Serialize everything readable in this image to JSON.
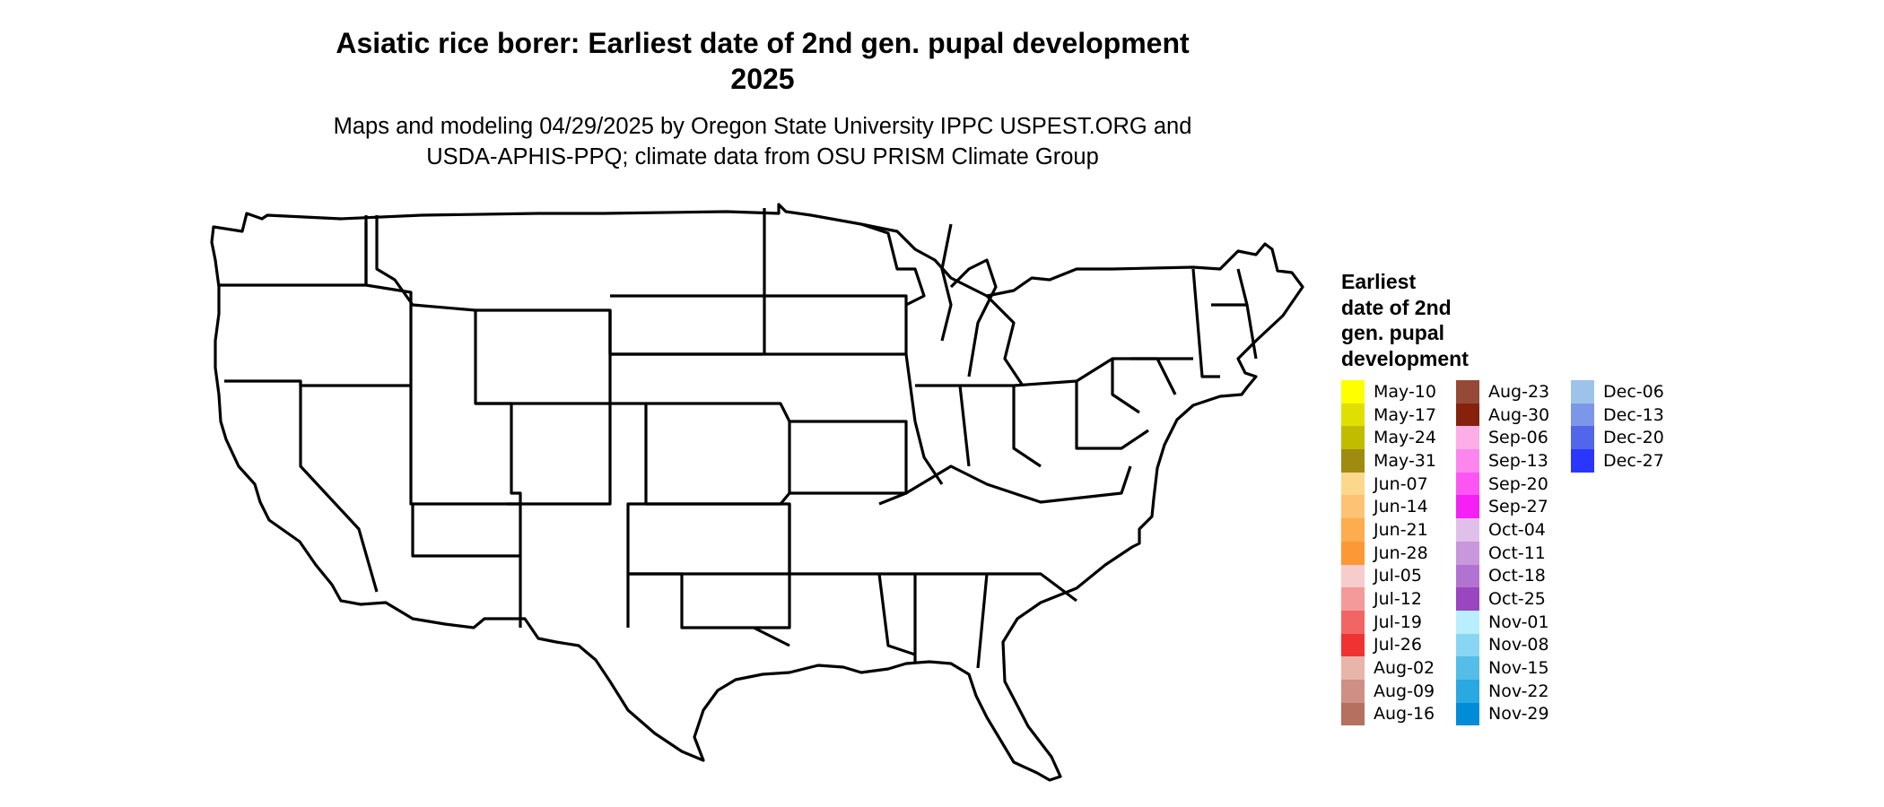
{
  "header": {
    "title": "Asiatic rice borer: Earliest date of 2nd gen. pupal development\n2025",
    "title_line1": "Asiatic rice borer: Earliest date of 2nd gen. pupal development",
    "title_line2": "2025",
    "subtitle_line1": "Maps and modeling 04/29/2025 by Oregon State University IPPC USPEST.ORG and",
    "subtitle_line2": "USDA-APHIS-PPQ; climate data from OSU PRISM Climate Group"
  },
  "legend": {
    "title_lines": [
      "Earliest",
      "date of 2nd",
      "gen. pupal",
      "development"
    ],
    "columns": [
      [
        {
          "label": "May-10",
          "color": "#ffff00"
        },
        {
          "label": "May-17",
          "color": "#e0e000"
        },
        {
          "label": "May-24",
          "color": "#c2bc00"
        },
        {
          "label": "May-31",
          "color": "#9e8b0f"
        },
        {
          "label": "Jun-07",
          "color": "#fdd78c"
        },
        {
          "label": "Jun-14",
          "color": "#fdc273"
        },
        {
          "label": "Jun-21",
          "color": "#fdad4e"
        },
        {
          "label": "Jun-28",
          "color": "#fd9837"
        },
        {
          "label": "Jul-05",
          "color": "#f6cccc"
        },
        {
          "label": "Jul-12",
          "color": "#f49a9a"
        },
        {
          "label": "Jul-19",
          "color": "#f26565"
        },
        {
          "label": "Jul-26",
          "color": "#f03232"
        },
        {
          "label": "Aug-02",
          "color": "#e8b5aa"
        },
        {
          "label": "Aug-09",
          "color": "#cf8f84"
        },
        {
          "label": "Aug-16",
          "color": "#b5705f"
        }
      ],
      [
        {
          "label": "Aug-23",
          "color": "#954a37"
        },
        {
          "label": "Aug-30",
          "color": "#86210e"
        },
        {
          "label": "Sep-06",
          "color": "#fdaee6"
        },
        {
          "label": "Sep-13",
          "color": "#fd86ee"
        },
        {
          "label": "Sep-20",
          "color": "#fd55f4"
        },
        {
          "label": "Sep-27",
          "color": "#f620f7"
        },
        {
          "label": "Oct-04",
          "color": "#e0c0ea"
        },
        {
          "label": "Oct-11",
          "color": "#c897dc"
        },
        {
          "label": "Oct-18",
          "color": "#b272d2"
        },
        {
          "label": "Oct-25",
          "color": "#9a46c0"
        },
        {
          "label": "Nov-01",
          "color": "#b8eefd"
        },
        {
          "label": "Nov-08",
          "color": "#88d6f3"
        },
        {
          "label": "Nov-15",
          "color": "#55bde7"
        },
        {
          "label": "Nov-22",
          "color": "#2aa8e2"
        },
        {
          "label": "Nov-29",
          "color": "#008cd6"
        }
      ],
      [
        {
          "label": "Dec-06",
          "color": "#9ec3eb"
        },
        {
          "label": "Dec-13",
          "color": "#7d97e8"
        },
        {
          "label": "Dec-20",
          "color": "#5266ec"
        },
        {
          "label": "Dec-27",
          "color": "#2a35fd"
        }
      ]
    ]
  }
}
